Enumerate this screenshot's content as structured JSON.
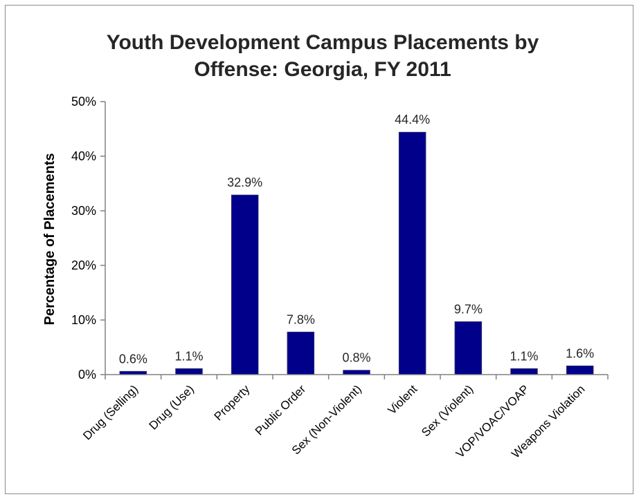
{
  "chart_data": {
    "type": "bar",
    "title_lines": [
      "Youth Development Campus Placements by",
      "Offense: Georgia,  FY 2011"
    ],
    "xlabel": "",
    "ylabel": "Percentage of Placements",
    "categories": [
      "Drug (Selling)",
      "Drug (Use)",
      "Property",
      "Public Order",
      "Sex (Non-Violent)",
      "Violent",
      "Sex (Violent)",
      "VOP/VOAC/VOAP",
      "Weapons Violation"
    ],
    "values": [
      0.6,
      1.1,
      32.9,
      7.8,
      0.8,
      44.4,
      9.7,
      1.1,
      1.6
    ],
    "value_labels": [
      "0.6%",
      "1.1%",
      "32.9%",
      "7.8%",
      "0.8%",
      "44.4%",
      "9.7%",
      "1.1%",
      "1.6%"
    ],
    "ylim": [
      0,
      50
    ],
    "yticks": [
      0,
      10,
      20,
      30,
      40,
      50
    ],
    "ytick_labels": [
      "0%",
      "10%",
      "20%",
      "30%",
      "40%",
      "50%"
    ],
    "grid": false,
    "legend": "none",
    "bar_color": "#00008b"
  }
}
